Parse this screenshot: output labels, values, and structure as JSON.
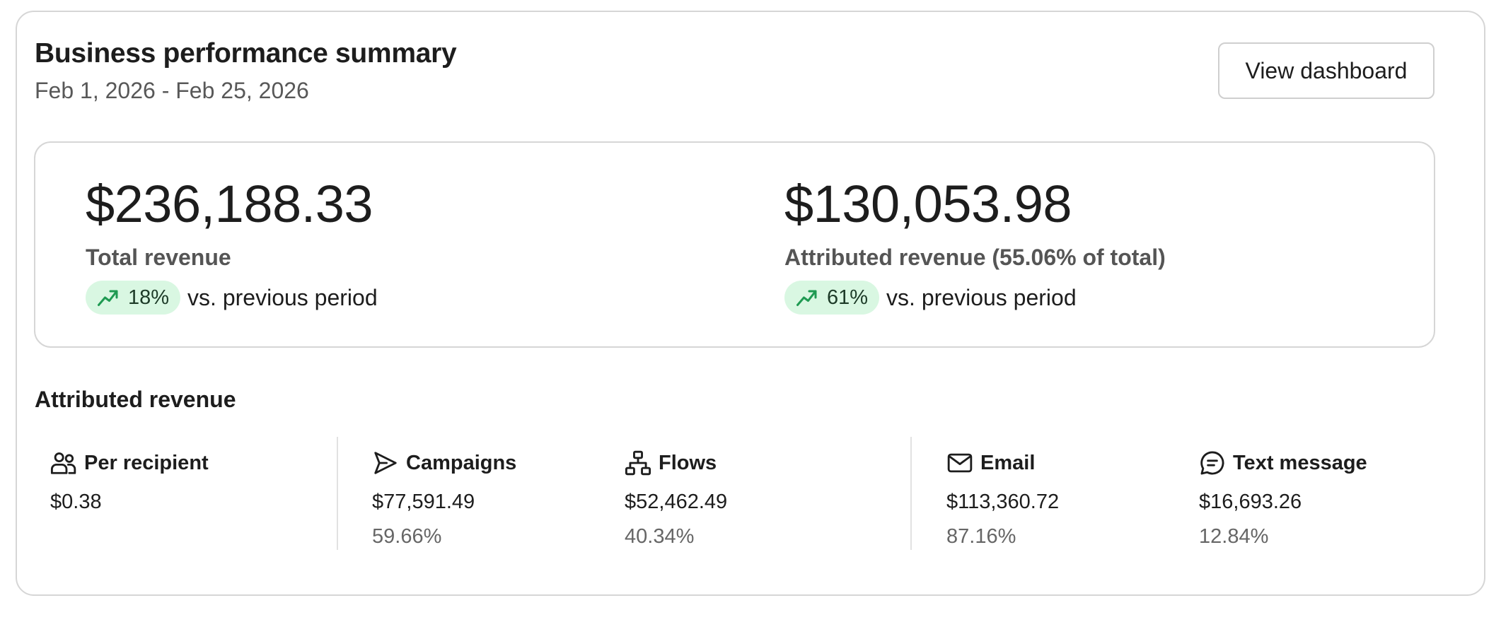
{
  "header": {
    "title": "Business performance summary",
    "date_range": "Feb 1, 2026 - Feb 25, 2026",
    "view_button_label": "View dashboard"
  },
  "summary": {
    "total": {
      "value": "$236,188.33",
      "label": "Total revenue",
      "change": "18%",
      "change_direction": "up",
      "comparison": "vs. previous period"
    },
    "attributed": {
      "value": "$130,053.98",
      "label": "Attributed revenue (55.06% of total)",
      "change": "61%",
      "change_direction": "up",
      "comparison": "vs. previous period"
    }
  },
  "attributed_section": {
    "title": "Attributed revenue",
    "stats": [
      {
        "label": "Per recipient",
        "value": "$0.38",
        "percent": "",
        "icon": "people-icon"
      },
      {
        "label": "Campaigns",
        "value": "$77,591.49",
        "percent": "59.66%",
        "icon": "send-icon"
      },
      {
        "label": "Flows",
        "value": "$52,462.49",
        "percent": "40.34%",
        "icon": "flow-icon"
      },
      {
        "label": "Email",
        "value": "$113,360.72",
        "percent": "87.16%",
        "icon": "email-icon"
      },
      {
        "label": "Text message",
        "value": "$16,693.26",
        "percent": "12.84%",
        "icon": "message-icon"
      }
    ]
  },
  "colors": {
    "positive_pill_bg": "#d9f7e2",
    "positive_icon": "#1f9a52",
    "border": "#d6d6d6"
  }
}
